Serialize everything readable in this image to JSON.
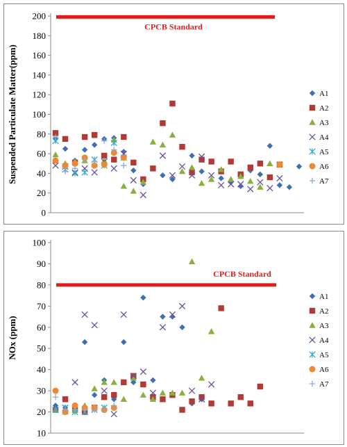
{
  "colors": {
    "A1": "#3e6fb3",
    "A2": "#b03a36",
    "A3": "#8aaf3e",
    "A4": "#6a4f9b",
    "A5": "#34a9cc",
    "A6": "#ea8b34",
    "A7": "#8ea7d6",
    "standard": "#e8191a"
  },
  "chart_data": [
    {
      "type": "scatter",
      "title": "",
      "xlabel": "",
      "ylabel": "Suspended Particulate Matter(ppm)",
      "ylim": [
        0,
        200
      ],
      "yticks": [
        0,
        20,
        40,
        60,
        80,
        100,
        120,
        140,
        160,
        180,
        200
      ],
      "x_count": 26,
      "grid": false,
      "legend_position": "right",
      "standard": {
        "label": "CPCB  Standard",
        "value": 199
      },
      "series": [
        {
          "name": "A1",
          "marker": "diamond",
          "points": [
            [
              1,
              75
            ],
            [
              2,
              65
            ],
            [
              3,
              53
            ],
            [
              4,
              64
            ],
            [
              5,
              69
            ],
            [
              6,
              75
            ],
            [
              7,
              76
            ],
            [
              8,
              62
            ],
            [
              9,
              43
            ],
            [
              10,
              29
            ],
            [
              12,
              38
            ],
            [
              13,
              34
            ],
            [
              15,
              58
            ],
            [
              16,
              42
            ],
            [
              17,
              52
            ],
            [
              18,
              35
            ],
            [
              19,
              31
            ],
            [
              20,
              27
            ],
            [
              21,
              43
            ],
            [
              22,
              39
            ],
            [
              23,
              68
            ],
            [
              24,
              28
            ],
            [
              25,
              26
            ],
            [
              26,
              47
            ]
          ]
        },
        {
          "name": "A2",
          "marker": "square",
          "points": [
            [
              1,
              81
            ],
            [
              2,
              75
            ],
            [
              3,
              51
            ],
            [
              4,
              77
            ],
            [
              5,
              79
            ],
            [
              6,
              58
            ],
            [
              7,
              54
            ],
            [
              8,
              77
            ],
            [
              9,
              51
            ],
            [
              10,
              34
            ],
            [
              11,
              45
            ],
            [
              12,
              91
            ],
            [
              13,
              111
            ],
            [
              14,
              67
            ],
            [
              15,
              41
            ],
            [
              16,
              54
            ],
            [
              17,
              52
            ],
            [
              18,
              42
            ],
            [
              19,
              52
            ],
            [
              20,
              39
            ],
            [
              21,
              46
            ],
            [
              22,
              50
            ],
            [
              23,
              36
            ],
            [
              24,
              49
            ]
          ]
        },
        {
          "name": "A3",
          "marker": "triangle",
          "points": [
            [
              1,
              59
            ],
            [
              2,
              50
            ],
            [
              3,
              52
            ],
            [
              4,
              53
            ],
            [
              5,
              49
            ],
            [
              6,
              53
            ],
            [
              7,
              74
            ],
            [
              8,
              27
            ],
            [
              9,
              22
            ],
            [
              10,
              31
            ],
            [
              11,
              72
            ],
            [
              12,
              69
            ],
            [
              13,
              79
            ],
            [
              14,
              42
            ],
            [
              15,
              46
            ],
            [
              16,
              30
            ],
            [
              17,
              34
            ],
            [
              18,
              44
            ],
            [
              19,
              34
            ],
            [
              20,
              37
            ],
            [
              21,
              32
            ],
            [
              22,
              26
            ],
            [
              23,
              50
            ]
          ]
        },
        {
          "name": "A4",
          "marker": "x",
          "points": [
            [
              1,
              48
            ],
            [
              2,
              47
            ],
            [
              3,
              41
            ],
            [
              4,
              45
            ],
            [
              5,
              41
            ],
            [
              6,
              52
            ],
            [
              7,
              45
            ],
            [
              8,
              60
            ],
            [
              9,
              33
            ],
            [
              10,
              18
            ],
            [
              12,
              58
            ],
            [
              13,
              38
            ],
            [
              14,
              47
            ],
            [
              15,
              38
            ],
            [
              16,
              57
            ],
            [
              17,
              38
            ],
            [
              18,
              28
            ],
            [
              19,
              29
            ],
            [
              20,
              29
            ],
            [
              21,
              24
            ],
            [
              22,
              31
            ],
            [
              23,
              25
            ],
            [
              24,
              35
            ]
          ]
        },
        {
          "name": "A5",
          "marker": "star",
          "points": [
            [
              1,
              73
            ],
            [
              2,
              44
            ],
            [
              3,
              40
            ],
            [
              4,
              41
            ],
            [
              5,
              54
            ],
            [
              6,
              48
            ],
            [
              7,
              71
            ],
            [
              8,
              56
            ]
          ]
        },
        {
          "name": "A6",
          "marker": "circle",
          "points": [
            [
              1,
              53
            ],
            [
              2,
              48
            ],
            [
              3,
              50
            ],
            [
              4,
              56
            ],
            [
              5,
              48
            ],
            [
              6,
              49
            ],
            [
              7,
              61
            ],
            [
              8,
              56
            ],
            [
              24,
              49
            ]
          ]
        },
        {
          "name": "A7",
          "marker": "plus",
          "points": [
            [
              1,
              77
            ],
            [
              2,
              42
            ],
            [
              3,
              45
            ],
            [
              4,
              54
            ],
            [
              5,
              52
            ],
            [
              6,
              73
            ],
            [
              7,
              64
            ],
            [
              8,
              48
            ]
          ]
        }
      ]
    },
    {
      "type": "scatter",
      "title": "",
      "xlabel": "",
      "ylabel": "NOx (ppm)",
      "ylim": [
        10,
        100
      ],
      "yticks": [
        10,
        20,
        30,
        40,
        50,
        60,
        70,
        80,
        90,
        100
      ],
      "x_count": 26,
      "grid": false,
      "legend_position": "right",
      "standard": {
        "label": "CPCB  Standard",
        "value": 80
      },
      "series": [
        {
          "name": "A1",
          "marker": "diamond",
          "points": [
            [
              1,
              23
            ],
            [
              2,
              22
            ],
            [
              3,
              21
            ],
            [
              4,
              53
            ],
            [
              5,
              28
            ],
            [
              6,
              35
            ],
            [
              7,
              26
            ],
            [
              8,
              53
            ],
            [
              9,
              34
            ],
            [
              10,
              74
            ],
            [
              11,
              35
            ],
            [
              12,
              65
            ],
            [
              13,
              65
            ],
            [
              14,
              60
            ],
            [
              15,
              24
            ],
            [
              16,
              26
            ],
            [
              17,
              24
            ]
          ]
        },
        {
          "name": "A2",
          "marker": "square",
          "points": [
            [
              1,
              21
            ],
            [
              2,
              26
            ],
            [
              3,
              21
            ],
            [
              4,
              20
            ],
            [
              5,
              22
            ],
            [
              6,
              27
            ],
            [
              7,
              28
            ],
            [
              8,
              34
            ],
            [
              9,
              37
            ],
            [
              10,
              33
            ],
            [
              11,
              27
            ],
            [
              12,
              26
            ],
            [
              13,
              28
            ],
            [
              14,
              21
            ],
            [
              15,
              25
            ],
            [
              16,
              27
            ],
            [
              17,
              24
            ],
            [
              18,
              69
            ],
            [
              19,
              24
            ],
            [
              20,
              27
            ],
            [
              21,
              24
            ],
            [
              22,
              32
            ]
          ]
        },
        {
          "name": "A3",
          "marker": "triangle",
          "points": [
            [
              1,
              21
            ],
            [
              2,
              20
            ],
            [
              3,
              21
            ],
            [
              4,
              23
            ],
            [
              5,
              31
            ],
            [
              6,
              34
            ],
            [
              7,
              34
            ],
            [
              8,
              26
            ],
            [
              9,
              36
            ],
            [
              10,
              28
            ],
            [
              11,
              26
            ],
            [
              12,
              29
            ],
            [
              13,
              29
            ],
            [
              14,
              29
            ],
            [
              15,
              91
            ],
            [
              16,
              36
            ],
            [
              17,
              58
            ]
          ]
        },
        {
          "name": "A4",
          "marker": "x",
          "points": [
            [
              1,
              21
            ],
            [
              2,
              22
            ],
            [
              3,
              34
            ],
            [
              4,
              66
            ],
            [
              5,
              61
            ],
            [
              6,
              30
            ],
            [
              7,
              19
            ],
            [
              8,
              66
            ],
            [
              9,
              37
            ],
            [
              10,
              39
            ],
            [
              11,
              29
            ],
            [
              12,
              60
            ],
            [
              13,
              66
            ],
            [
              14,
              70
            ],
            [
              15,
              30
            ],
            [
              16,
              26
            ],
            [
              17,
              33
            ]
          ]
        },
        {
          "name": "A5",
          "marker": "star",
          "points": [
            [
              1,
              21
            ],
            [
              2,
              22
            ],
            [
              3,
              20
            ],
            [
              4,
              20
            ],
            [
              5,
              21
            ],
            [
              6,
              22
            ]
          ]
        },
        {
          "name": "A6",
          "marker": "circle",
          "points": [
            [
              1,
              30
            ],
            [
              2,
              20
            ],
            [
              3,
              23
            ],
            [
              4,
              22
            ],
            [
              5,
              22
            ],
            [
              6,
              21
            ],
            [
              7,
              22
            ]
          ]
        },
        {
          "name": "A7",
          "marker": "plus",
          "points": [
            [
              1,
              27
            ],
            [
              2,
              21
            ],
            [
              3,
              21
            ],
            [
              4,
              21
            ],
            [
              5,
              21
            ],
            [
              6,
              21
            ],
            [
              7,
              23
            ]
          ]
        }
      ]
    }
  ]
}
